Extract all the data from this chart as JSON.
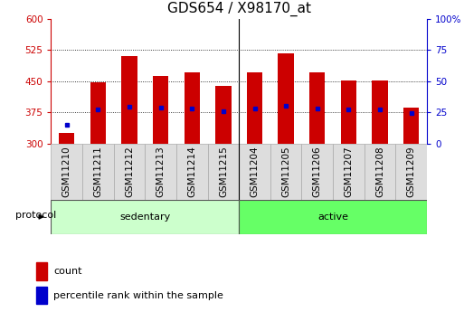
{
  "title": "GDS654 / X98170_at",
  "samples": [
    "GSM11210",
    "GSM11211",
    "GSM11212",
    "GSM11213",
    "GSM11214",
    "GSM11215",
    "GSM11204",
    "GSM11205",
    "GSM11206",
    "GSM11207",
    "GSM11208",
    "GSM11209"
  ],
  "counts": [
    325,
    447,
    510,
    462,
    472,
    438,
    470,
    517,
    470,
    452,
    452,
    387
  ],
  "percentile_values": [
    345,
    383,
    388,
    386,
    385,
    378,
    385,
    390,
    385,
    382,
    381,
    374
  ],
  "ylim_left": [
    300,
    600
  ],
  "ylim_right": [
    0,
    100
  ],
  "yticks_left": [
    300,
    375,
    450,
    525,
    600
  ],
  "yticks_right": [
    0,
    25,
    50,
    75,
    100
  ],
  "bar_color": "#cc0000",
  "dot_color": "#0000cc",
  "bar_width": 0.5,
  "sedentary_color": "#ccffcc",
  "active_color": "#66ff66",
  "tick_bg_color": "#dddddd",
  "group_label_sedentary": "sedentary",
  "group_label_active": "active",
  "protocol_label": "protocol",
  "legend_count": "count",
  "legend_percentile": "percentile rank within the sample",
  "title_fontsize": 11,
  "tick_fontsize": 7.5,
  "label_fontsize": 8,
  "background_color": "#ffffff"
}
